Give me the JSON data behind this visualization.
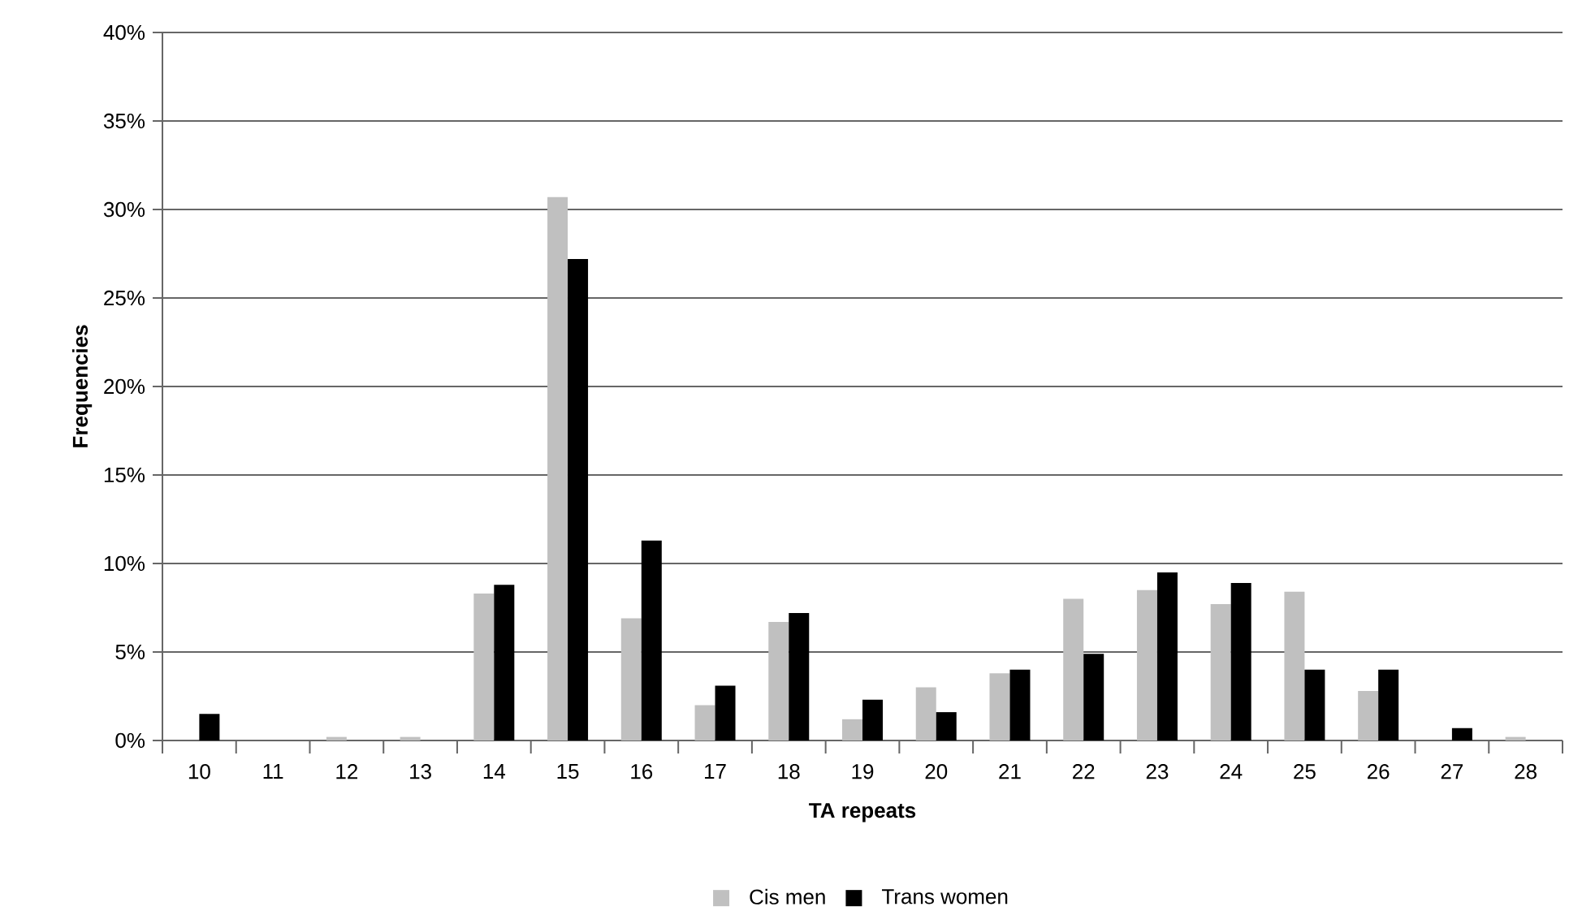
{
  "chart_data": {
    "type": "bar",
    "xlabel": "TA repeats",
    "ylabel": "Frequencies",
    "categories": [
      "10",
      "11",
      "12",
      "13",
      "14",
      "15",
      "16",
      "17",
      "18",
      "19",
      "20",
      "21",
      "22",
      "23",
      "24",
      "25",
      "26",
      "27",
      "28"
    ],
    "series": [
      {
        "name": "Cis men",
        "color": "#c0c0c0",
        "values": [
          0,
          0,
          0.2,
          0.2,
          8.3,
          30.7,
          6.9,
          2.0,
          6.7,
          1.2,
          3.0,
          3.8,
          8.0,
          8.5,
          7.7,
          8.4,
          2.8,
          0,
          0.2
        ]
      },
      {
        "name": "Trans women",
        "color": "#000000",
        "values": [
          1.5,
          0,
          0,
          0,
          8.8,
          27.2,
          11.3,
          3.1,
          7.2,
          2.3,
          1.6,
          4.0,
          4.9,
          9.5,
          8.9,
          4.0,
          4.0,
          0.7,
          0
        ]
      }
    ],
    "ylim": [
      0,
      40
    ],
    "yticks": [
      {
        "value": 0,
        "label": "0%"
      },
      {
        "value": 5,
        "label": "5%"
      },
      {
        "value": 10,
        "label": "10%"
      },
      {
        "value": 15,
        "label": "15%"
      },
      {
        "value": 20,
        "label": "20%"
      },
      {
        "value": 25,
        "label": "25%"
      },
      {
        "value": 30,
        "label": "30%"
      },
      {
        "value": 35,
        "label": "35%"
      },
      {
        "value": 40,
        "label": "40%"
      }
    ],
    "grid": "y",
    "legend": "bottom"
  }
}
